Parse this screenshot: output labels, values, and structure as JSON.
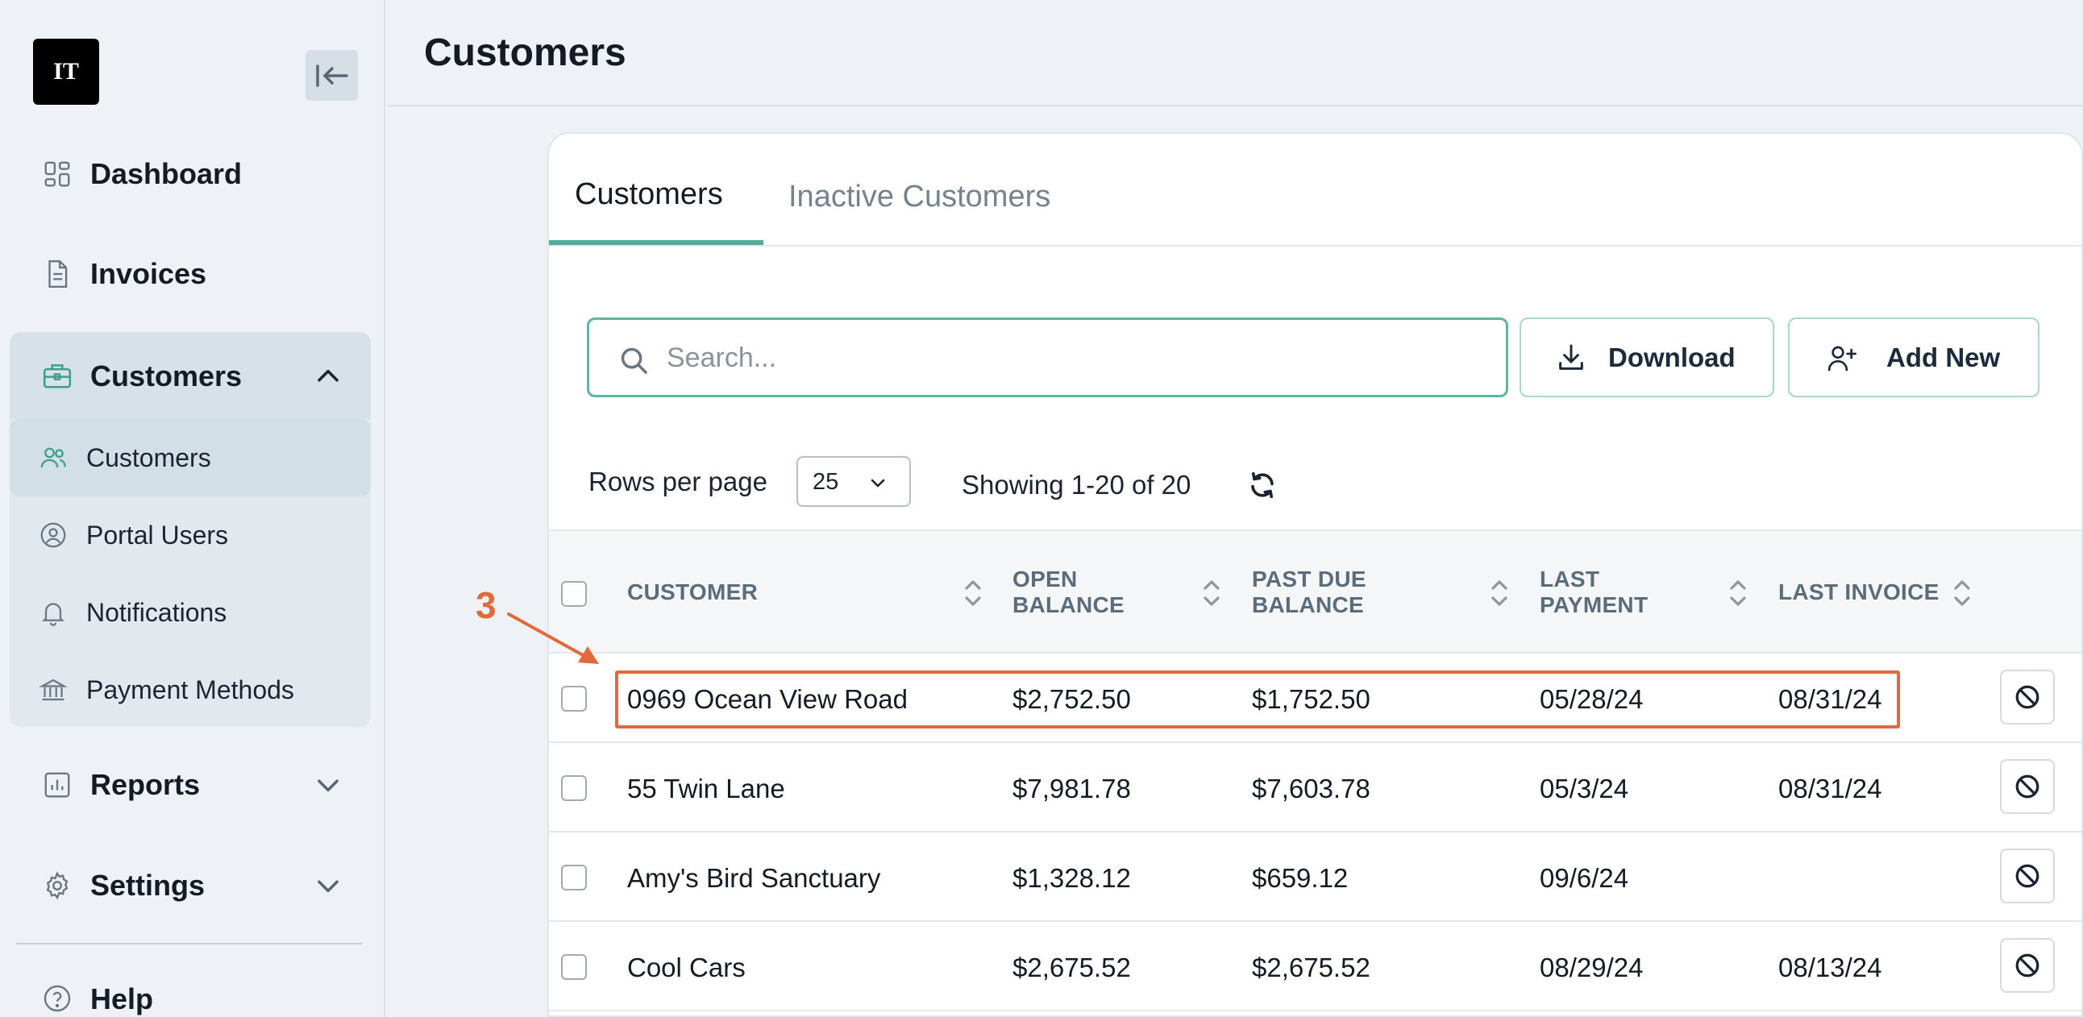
{
  "app": {
    "logo_text": "IT"
  },
  "sidebar": {
    "items": [
      {
        "label": "Dashboard",
        "icon": "dashboard-icon"
      },
      {
        "label": "Invoices",
        "icon": "document-icon"
      },
      {
        "label": "Customers",
        "icon": "briefcase-icon",
        "expanded": true
      },
      {
        "label": "Reports",
        "icon": "chart-icon"
      },
      {
        "label": "Settings",
        "icon": "gear-icon"
      },
      {
        "label": "Help",
        "icon": "help-icon"
      }
    ],
    "sub_items": [
      {
        "label": "Customers",
        "icon": "users-icon",
        "active": true
      },
      {
        "label": "Portal Users",
        "icon": "user-circle-icon"
      },
      {
        "label": "Notifications",
        "icon": "bell-icon"
      },
      {
        "label": "Payment Methods",
        "icon": "bank-icon"
      }
    ]
  },
  "header": {
    "title": "Customers"
  },
  "tabs": [
    {
      "label": "Customers",
      "active": true
    },
    {
      "label": "Inactive Customers",
      "active": false
    }
  ],
  "toolbar": {
    "search_placeholder": "Search...",
    "download_label": "Download",
    "add_new_label": "Add New"
  },
  "pagination": {
    "rows_label": "Rows per page",
    "rows_value": "25",
    "showing": "Showing 1-20 of 20"
  },
  "table": {
    "columns": [
      "CUSTOMER",
      "OPEN BALANCE",
      "PAST DUE BALANCE",
      "LAST PAYMENT",
      "LAST INVOICE"
    ],
    "rows": [
      {
        "customer": "0969 Ocean View Road",
        "open_balance": "$2,752.50",
        "past_due": "$1,752.50",
        "last_payment": "05/28/24",
        "last_invoice": "08/31/24"
      },
      {
        "customer": "55 Twin Lane",
        "open_balance": "$7,981.78",
        "past_due": "$7,603.78",
        "last_payment": "05/3/24",
        "last_invoice": "08/31/24"
      },
      {
        "customer": "Amy's Bird Sanctuary",
        "open_balance": "$1,328.12",
        "past_due": "$659.12",
        "last_payment": "09/6/24",
        "last_invoice": ""
      },
      {
        "customer": "Cool Cars",
        "open_balance": "$2,675.52",
        "past_due": "$2,675.52",
        "last_payment": "08/29/24",
        "last_invoice": "08/13/24"
      }
    ]
  },
  "annotation": {
    "number": "3",
    "color": "#e06a3c"
  },
  "colors": {
    "accent": "#4fae9b",
    "sidebar_bg": "#eef2f6",
    "active_group_bg": "#d6e1e9"
  }
}
